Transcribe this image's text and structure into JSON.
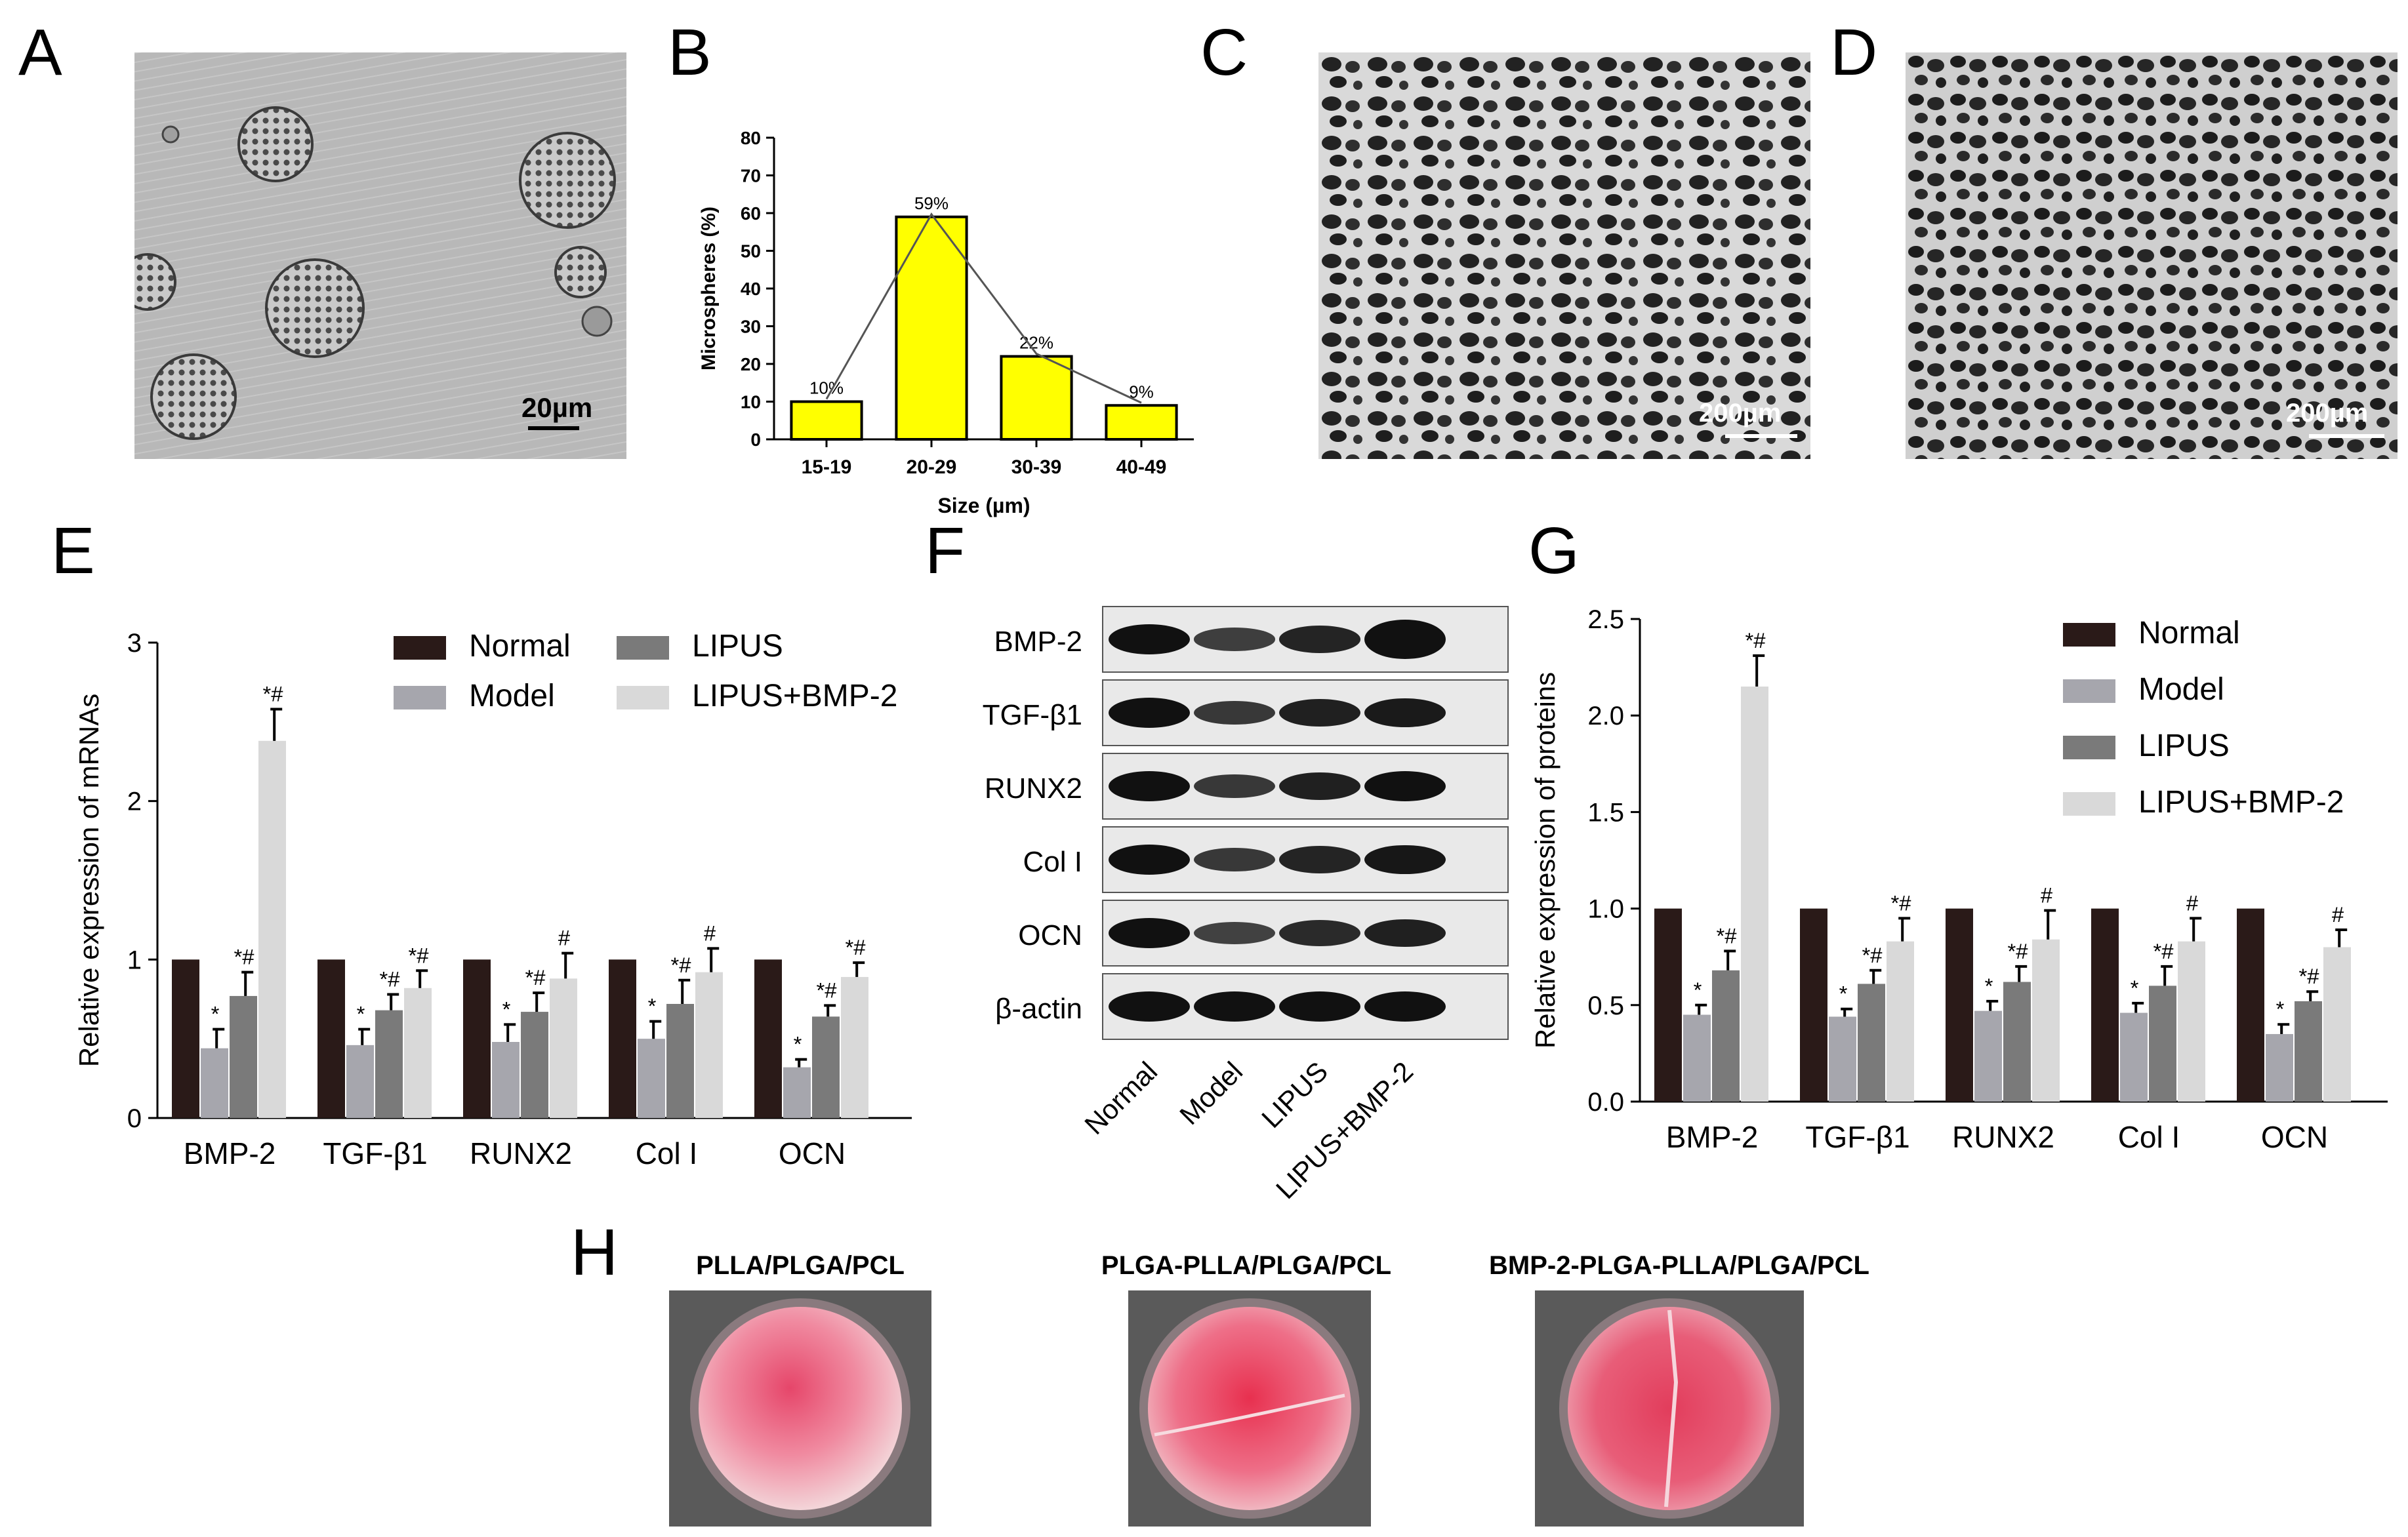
{
  "panels": {
    "A": {
      "label": "A",
      "scale": "20µm"
    },
    "B": {
      "label": "B"
    },
    "C": {
      "label": "C",
      "scale": "200µm"
    },
    "D": {
      "label": "D",
      "scale": "200µm"
    },
    "E": {
      "label": "E"
    },
    "F": {
      "label": "F"
    },
    "G": {
      "label": "G"
    },
    "H": {
      "label": "H"
    }
  },
  "chart_data": [
    {
      "id": "B",
      "type": "bar",
      "categories": [
        "15-19",
        "20-29",
        "30-39",
        "40-49"
      ],
      "values": [
        10,
        59,
        22,
        9
      ],
      "data_labels": [
        "10%",
        "59%",
        "22%",
        "9%"
      ],
      "xlabel": "Size (µm)",
      "ylabel": "Microspheres (%)",
      "ylim": [
        0,
        80
      ],
      "yticks": [
        0,
        10,
        20,
        30,
        40,
        50,
        60,
        70,
        80
      ],
      "bar_color": "#ffff00",
      "overlay_line": true
    },
    {
      "id": "E",
      "type": "bar",
      "categories": [
        "BMP-2",
        "TGF-β1",
        "RUNX2",
        "Col I",
        "OCN"
      ],
      "ylabel": "Relative expression of mRNAs",
      "ylim": [
        0,
        3
      ],
      "yticks": [
        0,
        1,
        2,
        3
      ],
      "legend_position": "top-right",
      "series": [
        {
          "name": "Normal",
          "color": "#2a1a18",
          "values": [
            1,
            1,
            1,
            1,
            1
          ],
          "errors": [
            0,
            0,
            0,
            0,
            0
          ],
          "marks": [
            "",
            "",
            "",
            "",
            ""
          ]
        },
        {
          "name": "Model",
          "color": "#a6a6ad",
          "values": [
            0.44,
            0.46,
            0.48,
            0.5,
            0.32
          ],
          "errors": [
            0.12,
            0.1,
            0.11,
            0.11,
            0.05
          ],
          "marks": [
            "*",
            "*",
            "*",
            "*",
            "*"
          ]
        },
        {
          "name": "LIPUS",
          "color": "#7a7a7a",
          "values": [
            0.77,
            0.68,
            0.67,
            0.72,
            0.64
          ],
          "errors": [
            0.15,
            0.1,
            0.12,
            0.15,
            0.07
          ],
          "marks": [
            "*#",
            "*#",
            "*#",
            "*#",
            "*#"
          ]
        },
        {
          "name": "LIPUS+BMP-2",
          "color": "#d9d9d9",
          "values": [
            2.38,
            0.82,
            0.88,
            0.92,
            0.89
          ],
          "errors": [
            0.2,
            0.11,
            0.16,
            0.15,
            0.09
          ],
          "marks": [
            "*#",
            "*#",
            "#",
            "#",
            "*#"
          ]
        }
      ]
    },
    {
      "id": "G",
      "type": "bar",
      "categories": [
        "BMP-2",
        "TGF-β1",
        "RUNX2",
        "Col I",
        "OCN"
      ],
      "ylabel": "Relative expression of proteins",
      "ylim": [
        0,
        2.5
      ],
      "yticks": [
        0.0,
        0.5,
        1.0,
        1.5,
        2.0,
        2.5
      ],
      "ytick_labels": [
        "0.0",
        "0.5",
        "1.0",
        "1.5",
        "2.0",
        "2.5"
      ],
      "legend_position": "top-right",
      "series": [
        {
          "name": "Normal",
          "color": "#2a1a18",
          "values": [
            1,
            1,
            1,
            1,
            1
          ],
          "errors": [
            0,
            0,
            0,
            0,
            0
          ],
          "marks": [
            "",
            "",
            "",
            "",
            ""
          ]
        },
        {
          "name": "Model",
          "color": "#a6a6ad",
          "values": [
            0.45,
            0.44,
            0.47,
            0.46,
            0.35
          ],
          "errors": [
            0.05,
            0.04,
            0.05,
            0.05,
            0.05
          ],
          "marks": [
            "*",
            "*",
            "*",
            "*",
            "*"
          ]
        },
        {
          "name": "LIPUS",
          "color": "#7a7a7a",
          "values": [
            0.68,
            0.61,
            0.62,
            0.6,
            0.52
          ],
          "errors": [
            0.1,
            0.07,
            0.08,
            0.1,
            0.05
          ],
          "marks": [
            "*#",
            "*#",
            "*#",
            "*#",
            "*#"
          ]
        },
        {
          "name": "LIPUS+BMP-2",
          "color": "#d9d9d9",
          "values": [
            2.15,
            0.83,
            0.84,
            0.83,
            0.8
          ],
          "errors": [
            0.16,
            0.12,
            0.15,
            0.12,
            0.09
          ],
          "marks": [
            "*#",
            "*#",
            "#",
            "#",
            "#"
          ]
        }
      ]
    }
  ],
  "western_blot": {
    "proteins": [
      "BMP-2",
      "TGF-β1",
      "RUNX2",
      "Col I",
      "OCN",
      "β-actin"
    ],
    "lanes": [
      "Normal",
      "Model",
      "LIPUS",
      "LIPUS+BMP-2"
    ],
    "band_intensity": [
      [
        1.0,
        0.55,
        0.8,
        1.6
      ],
      [
        1.0,
        0.6,
        0.85,
        0.9
      ],
      [
        1.0,
        0.6,
        0.85,
        1.0
      ],
      [
        1.0,
        0.6,
        0.8,
        0.95
      ],
      [
        1.0,
        0.5,
        0.75,
        0.85
      ],
      [
        1.0,
        1.0,
        1.0,
        1.0
      ]
    ]
  },
  "staining": {
    "titles": [
      "PLLA/PLGA/PCL",
      "PLGA-PLLA/PLGA/PCL",
      "BMP-2-PLGA-PLLA/PLGA/PCL"
    ]
  }
}
